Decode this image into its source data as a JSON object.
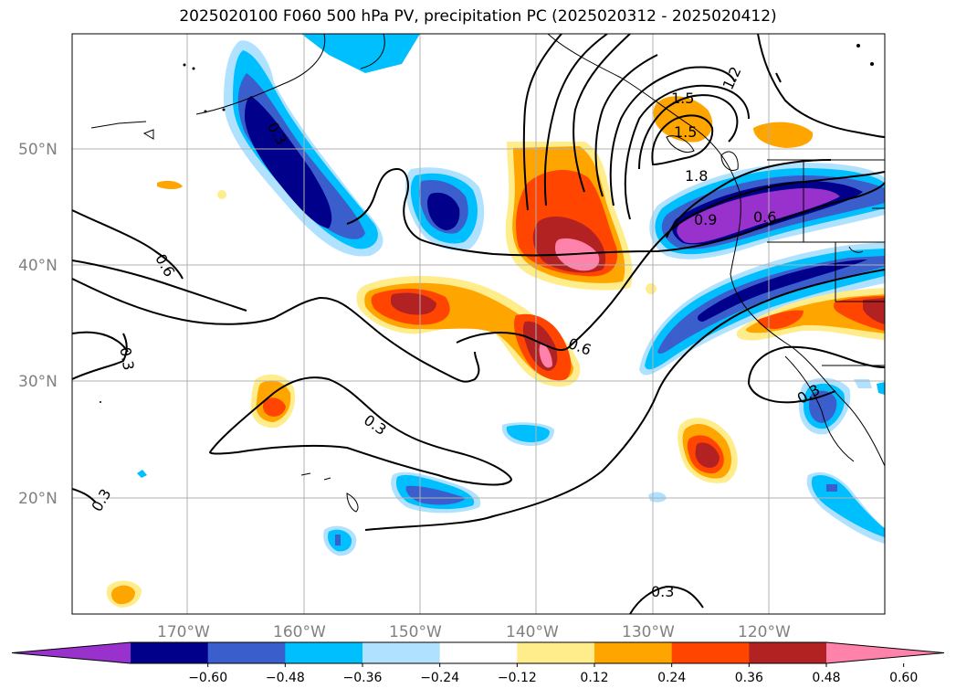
{
  "title": "2025020100 F060 500 hPa PV, precipitation PC (2025020312 - 2025020412)",
  "lat_labels": [
    "50°N",
    "40°N",
    "30°N",
    "20°N"
  ],
  "lon_labels": [
    "170°W",
    "160°W",
    "150°W",
    "140°W",
    "130°W",
    "120°W"
  ],
  "colorbar": {
    "ticks": [
      "−0.60",
      "−0.48",
      "−0.36",
      "−0.24",
      "−0.12",
      "0.12",
      "0.24",
      "0.36",
      "0.48",
      "0.60"
    ],
    "colors": [
      "#9932cc",
      "#00008b",
      "#3a5fcd",
      "#00bfff",
      "#b0e2ff",
      "#ffffff",
      "#ffec8b",
      "#ffa500",
      "#ff4500",
      "#b22222",
      "#ff82ab"
    ]
  },
  "contour_labels": [
    "1.2",
    "1.5",
    "1.8",
    "1.5",
    "0.9",
    "0.6",
    "0.6",
    "0.3",
    "0.6",
    "0.3",
    "0.3",
    "0.3",
    "0.3",
    "0.3",
    "0.6"
  ]
}
